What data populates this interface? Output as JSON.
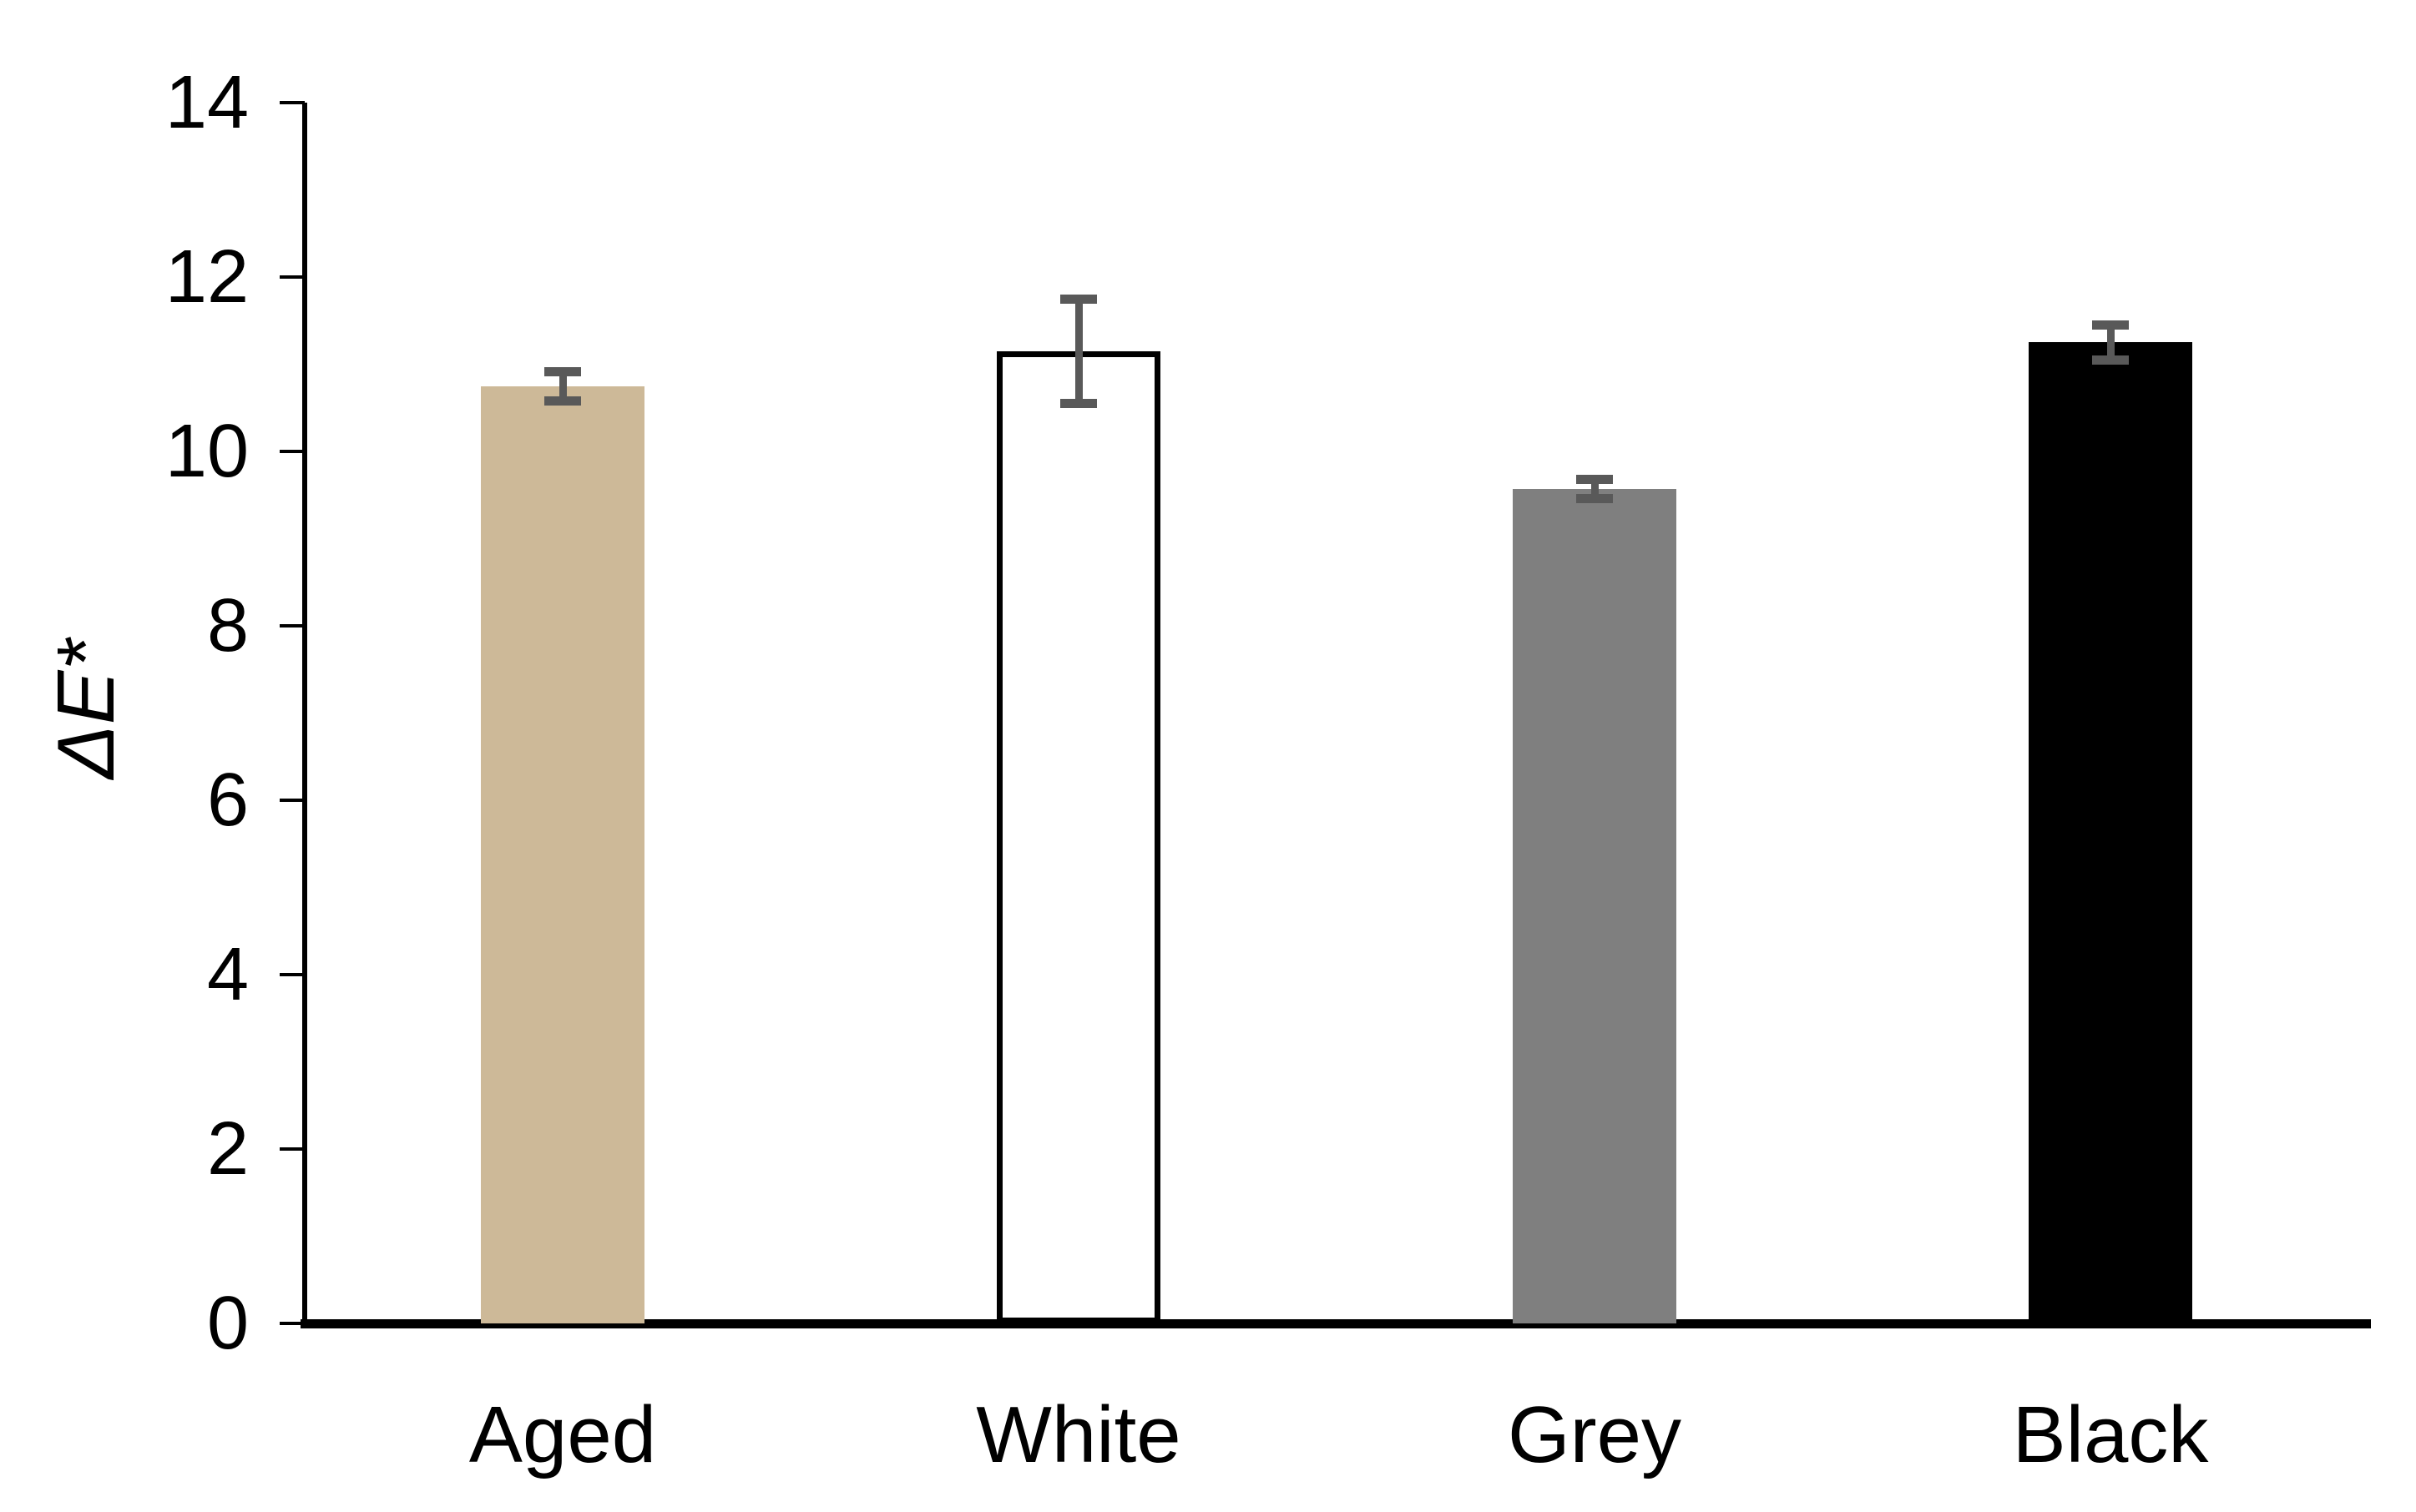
{
  "chart_data": {
    "type": "bar",
    "title": "",
    "xlabel": "",
    "ylabel": "ΔE*",
    "categories": [
      "Aged",
      "White",
      "Grey",
      "Black"
    ],
    "values": [
      10.75,
      11.15,
      9.57,
      11.25
    ],
    "errors": [
      0.22,
      0.65,
      0.16,
      0.25
    ],
    "yticks": [
      "0",
      "2",
      "4",
      "6",
      "8",
      "10",
      "12",
      "14"
    ],
    "ytick_values": [
      0,
      2,
      4,
      6,
      8,
      10,
      12,
      14
    ],
    "ylim": [
      0,
      14
    ],
    "grid": false,
    "legend": null,
    "colors": {
      "bar_fills": [
        "#CDB998",
        "#FFFFFF",
        "#7F7F7F",
        "#000000"
      ],
      "bar_borders": [
        "none",
        "#000000",
        "none",
        "none"
      ],
      "error_bar": "#595959",
      "axis": "#000000",
      "background": "#FFFFFF"
    }
  }
}
